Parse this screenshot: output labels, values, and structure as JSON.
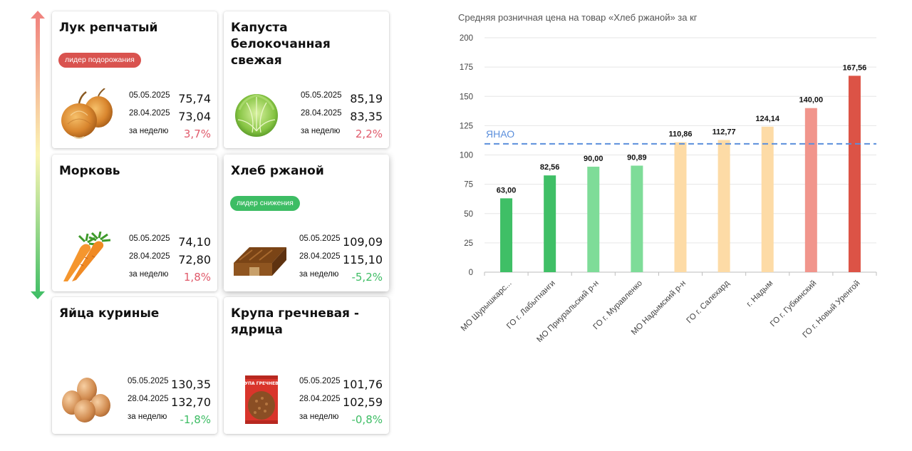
{
  "colors": {
    "increase": "#e05a6b",
    "decrease": "#3dbd64",
    "badge_up": "#d9534f",
    "badge_down": "#3dbd64",
    "reference_line": "#5b8fdc"
  },
  "cards": [
    {
      "name": "Лук репчатый",
      "badge": "лидер подорожания",
      "badge_type": "up",
      "date1": "05.05.2025",
      "value1": "75,74",
      "date2": "28.04.2025",
      "value2": "73,04",
      "week_label": "за неделю",
      "change": "3,7%",
      "change_dir": "pos",
      "icon": "onion-icon"
    },
    {
      "name": "Капуста белокочанная свежая",
      "badge": "",
      "badge_type": "",
      "date1": "05.05.2025",
      "value1": "85,19",
      "date2": "28.04.2025",
      "value2": "83,35",
      "week_label": "за неделю",
      "change": "2,2%",
      "change_dir": "pos",
      "icon": "cabbage-icon"
    },
    {
      "name": "Морковь",
      "badge": "",
      "badge_type": "",
      "date1": "05.05.2025",
      "value1": "74,10",
      "date2": "28.04.2025",
      "value2": "72,80",
      "week_label": "за неделю",
      "change": "1,8%",
      "change_dir": "pos",
      "icon": "carrot-icon"
    },
    {
      "name": "Хлеб ржаной",
      "badge": "лидер снижения",
      "badge_type": "down",
      "date1": "05.05.2025",
      "value1": "109,09",
      "date2": "28.04.2025",
      "value2": "115,10",
      "week_label": "за неделю",
      "change": "-5,2%",
      "change_dir": "neg",
      "icon": "rye-bread-icon"
    },
    {
      "name": "Яйца куриные",
      "badge": "",
      "badge_type": "",
      "date1": "05.05.2025",
      "value1": "130,35",
      "date2": "28.04.2025",
      "value2": "132,70",
      "week_label": "за неделю",
      "change": "-1,8%",
      "change_dir": "neg",
      "icon": "eggs-icon"
    },
    {
      "name": "Крупа гречневая - ядрица",
      "badge": "",
      "badge_type": "",
      "date1": "05.05.2025",
      "value1": "101,76",
      "date2": "28.04.2025",
      "value2": "102,59",
      "week_label": "за неделю",
      "change": "-0,8%",
      "change_dir": "neg",
      "icon": "buckwheat-pack-icon"
    }
  ],
  "pack_label": "КРУПА ГРЕЧНЕВАЯ",
  "chart_data": {
    "type": "bar",
    "title": "Средняя розничная цена на товар «Хлеб ржаной» за кг",
    "xlabel": "",
    "ylabel": "",
    "ylim": [
      0,
      200
    ],
    "yticks": [
      0,
      25,
      50,
      75,
      100,
      125,
      150,
      175,
      200
    ],
    "grid": true,
    "categories": [
      "МО Шурышкарс...",
      "ГО г. Лабытнанги",
      "МО Приуральский р-н",
      "ГО г. Муравленко",
      "МО Надымский р-н",
      "ГО г. Салехард",
      "г. Надым",
      "ГО г. Губкинский",
      "ГО г. Новый Уренгой"
    ],
    "values": [
      63.0,
      82.56,
      90.0,
      90.89,
      110.86,
      112.77,
      124.14,
      140.0,
      167.56
    ],
    "value_labels": [
      "63,00",
      "82,56",
      "90,00",
      "90,89",
      "110,86",
      "112,77",
      "124,14",
      "140,00",
      "167,56"
    ],
    "bar_colors": [
      "#3fbf66",
      "#3fbf66",
      "#7edc98",
      "#7edc98",
      "#fddba6",
      "#fddba6",
      "#fddba6",
      "#f1958c",
      "#dc5346"
    ],
    "reference_line": {
      "label": "ЯНАО",
      "value": 109.5
    }
  }
}
